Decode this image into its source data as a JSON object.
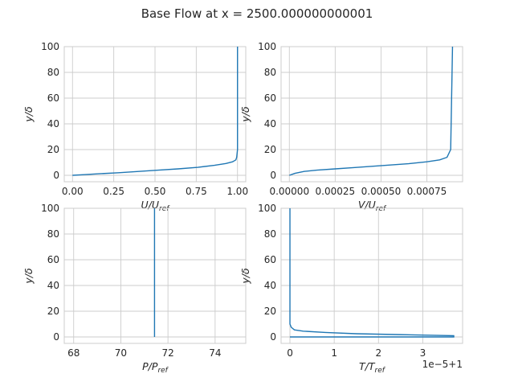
{
  "title": "Base Flow at x = 2500.000000000001",
  "chart_data": [
    {
      "type": "line",
      "xlabel_main": "U/U",
      "xlabel_sub": "ref",
      "ylabel": "y/δ",
      "xlim": [
        -0.05,
        1.05
      ],
      "ylim": [
        -5,
        100
      ],
      "xticks": [
        0.0,
        0.25,
        0.5,
        0.75,
        1.0
      ],
      "xtick_labels": [
        "0.00",
        "0.25",
        "0.50",
        "0.75",
        "1.00"
      ],
      "yticks": [
        0,
        20,
        40,
        60,
        80,
        100
      ],
      "ytick_labels": [
        "0",
        "20",
        "40",
        "60",
        "80",
        "100"
      ],
      "grid": true,
      "x": [
        0.0,
        0.07,
        0.16,
        0.28,
        0.4,
        0.52,
        0.64,
        0.76,
        0.86,
        0.93,
        0.97,
        0.99,
        0.995,
        1.0,
        1.0
      ],
      "y": [
        0,
        0.5,
        1.2,
        2.0,
        3.0,
        4.0,
        5.0,
        6.2,
        7.8,
        9.2,
        10.5,
        12.0,
        14.0,
        20.0,
        100.0
      ]
    },
    {
      "type": "line",
      "xlabel_main": "V/U",
      "xlabel_sub": "ref",
      "ylabel": "y/δ",
      "xlim": [
        -4.5e-05,
        0.000945
      ],
      "ylim": [
        -5,
        100
      ],
      "xticks": [
        0.0,
        0.00025,
        0.0005,
        0.00075
      ],
      "xtick_labels": [
        "0.00000",
        "0.00025",
        "0.00050",
        "0.00075"
      ],
      "yticks": [
        0,
        20,
        40,
        60,
        80,
        100
      ],
      "ytick_labels": [
        "0",
        "20",
        "40",
        "60",
        "80",
        "100"
      ],
      "grid": true,
      "x": [
        0.0,
        3e-05,
        8e-05,
        0.00015,
        0.00025,
        0.00035,
        0.00045,
        0.00055,
        0.00065,
        0.00075,
        0.00082,
        0.00086,
        0.00088,
        0.000885,
        0.00089
      ],
      "y": [
        0,
        1.5,
        3.0,
        4.0,
        5.0,
        6.0,
        7.0,
        8.0,
        9.0,
        10.5,
        12.0,
        14.0,
        20.0,
        60.0,
        100.0
      ]
    },
    {
      "type": "line",
      "xlabel_main": "P/P",
      "xlabel_sub": "ref",
      "ylabel": "y/δ",
      "xlim": [
        67.6,
        75.3
      ],
      "ylim": [
        -5,
        100
      ],
      "xticks": [
        68,
        70,
        72,
        74
      ],
      "xtick_labels": [
        "68",
        "70",
        "72",
        "74"
      ],
      "yticks": [
        0,
        20,
        40,
        60,
        80,
        100
      ],
      "ytick_labels": [
        "0",
        "20",
        "40",
        "60",
        "80",
        "100"
      ],
      "grid": true,
      "x": [
        71.43,
        71.43
      ],
      "y": [
        0,
        100
      ]
    },
    {
      "type": "line",
      "xlabel_main": "T/T",
      "xlabel_sub": "ref",
      "ylabel": "y/δ",
      "offset_text": "1e−5+1",
      "xlim": [
        -0.2,
        3.9
      ],
      "ylim": [
        -5,
        100
      ],
      "xticks": [
        0,
        1,
        2,
        3
      ],
      "xtick_labels": [
        "0",
        "1",
        "2",
        "3"
      ],
      "yticks": [
        0,
        20,
        40,
        60,
        80,
        100
      ],
      "ytick_labels": [
        "0",
        "20",
        "40",
        "60",
        "80",
        "100"
      ],
      "grid": true,
      "x": [
        0.0,
        3.7,
        3.7,
        2.5,
        1.5,
        0.8,
        0.3,
        0.1,
        0.03,
        0.0,
        0.0
      ],
      "y": [
        0,
        0,
        1.0,
        1.8,
        2.5,
        3.5,
        4.5,
        5.5,
        7.5,
        10.0,
        100.0
      ]
    }
  ]
}
